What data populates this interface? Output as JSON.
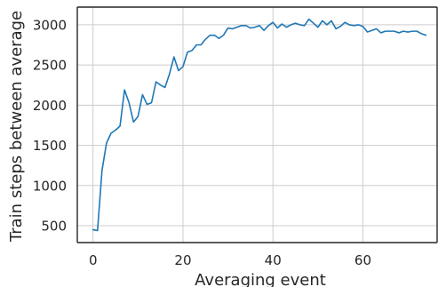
{
  "chart_data": {
    "type": "line",
    "title": "",
    "xlabel": "Averaging event",
    "ylabel": "Train steps between average",
    "xlim": [
      -3.5,
      76.5
    ],
    "ylim": [
      290,
      3220
    ],
    "xticks": [
      0,
      20,
      40,
      60
    ],
    "yticks": [
      500,
      1000,
      1500,
      2000,
      2500,
      3000
    ],
    "grid": true,
    "legend": "none",
    "series": [
      {
        "color": "#1f77b4",
        "x": [
          0,
          1,
          2,
          3,
          4,
          5,
          6,
          7,
          8,
          9,
          10,
          11,
          12,
          13,
          14,
          15,
          16,
          17,
          18,
          19,
          20,
          21,
          22,
          23,
          24,
          25,
          26,
          27,
          28,
          29,
          30,
          31,
          32,
          33,
          34,
          35,
          36,
          37,
          38,
          39,
          40,
          41,
          42,
          43,
          44,
          45,
          46,
          47,
          48,
          49,
          50,
          51,
          52,
          53,
          54,
          55,
          56,
          57,
          58,
          59,
          60,
          61,
          62,
          63,
          64,
          65,
          66,
          67,
          68,
          69,
          70,
          71,
          72,
          73,
          74
        ],
        "y": [
          450,
          440,
          1190,
          1530,
          1650,
          1690,
          1740,
          2190,
          2030,
          1790,
          1860,
          2130,
          2010,
          2030,
          2290,
          2250,
          2220,
          2390,
          2600,
          2430,
          2480,
          2660,
          2680,
          2750,
          2750,
          2820,
          2870,
          2870,
          2830,
          2870,
          2960,
          2950,
          2970,
          2990,
          2990,
          2960,
          2970,
          2990,
          2930,
          2990,
          3030,
          2960,
          3010,
          2970,
          3000,
          3020,
          3000,
          2990,
          3070,
          3020,
          2970,
          3050,
          3000,
          3050,
          2950,
          2980,
          3030,
          3000,
          2990,
          3000,
          2980,
          2910,
          2930,
          2950,
          2900,
          2920,
          2920,
          2920,
          2900,
          2920,
          2910,
          2920,
          2920,
          2890,
          2870
        ]
      }
    ]
  }
}
